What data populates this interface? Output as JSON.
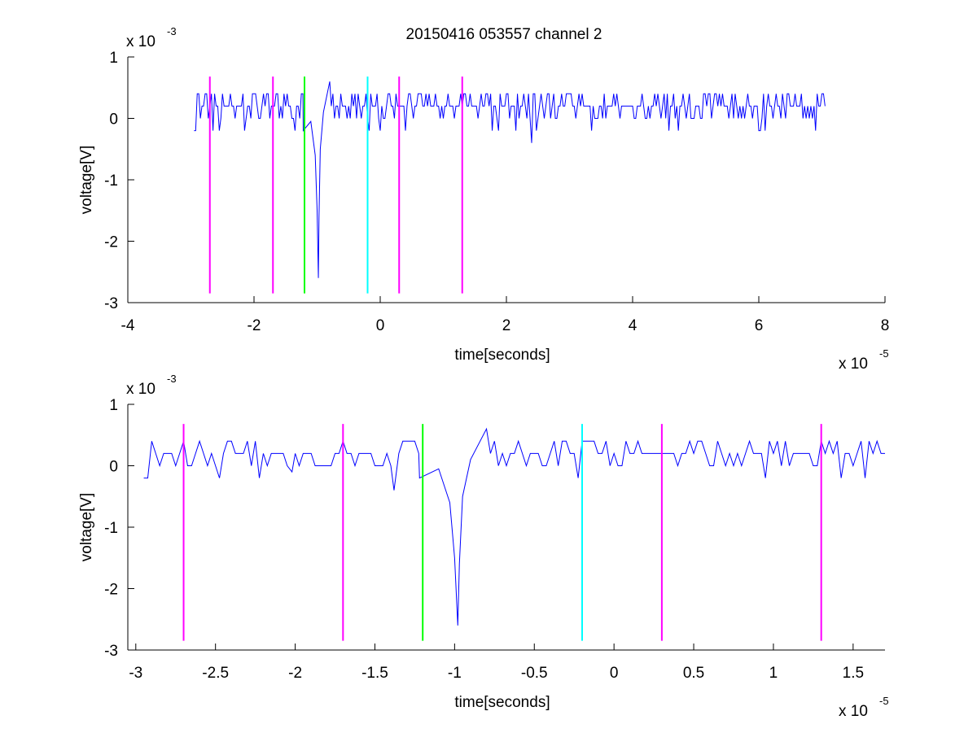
{
  "chart_data": [
    {
      "type": "line",
      "title": "20150416 053557 channel 2",
      "xlabel": "time[seconds]",
      "ylabel": "voltage[V]",
      "x_multiplier": {
        "base": "x 10",
        "exponent": "-5"
      },
      "y_multiplier": {
        "base": "x 10",
        "exponent": "-3"
      },
      "xlim": [
        -4,
        8
      ],
      "ylim": [
        -3,
        1
      ],
      "x_ticks": [
        "-4",
        "-2",
        "0",
        "2",
        "4",
        "6",
        "8"
      ],
      "x_tick_values": [
        -4,
        -2,
        0,
        2,
        4,
        6,
        8
      ],
      "y_ticks": [
        "1",
        "0",
        "-1",
        "-2",
        "-3"
      ],
      "y_tick_values": [
        1,
        0,
        -1,
        -2,
        -3
      ],
      "grid": false,
      "signal": {
        "color": "#0000ff",
        "x_range": [
          -2.95,
          7.05
        ],
        "baseline": 0.2,
        "levels": [
          0.4,
          0.2,
          0.0,
          -0.2
        ],
        "pulse": {
          "x": [
            -1.22,
            -1.1,
            -1.03,
            -1.0,
            -0.98,
            -0.97,
            -0.95,
            -0.9,
            -0.8
          ],
          "y": [
            -0.2,
            -0.05,
            -0.6,
            -1.5,
            -2.6,
            -1.6,
            -0.5,
            0.1,
            0.6
          ]
        },
        "extra_dips": [
          {
            "x": 2.4,
            "y": -0.4
          },
          {
            "x": -1.35,
            "y": -0.2
          }
        ]
      },
      "markers": [
        {
          "x": -2.7,
          "color": "#ff00ff"
        },
        {
          "x": -1.7,
          "color": "#ff00ff"
        },
        {
          "x": -1.2,
          "color": "#00ff00"
        },
        {
          "x": -0.2,
          "color": "#00ffff"
        },
        {
          "x": 0.3,
          "color": "#ff00ff"
        },
        {
          "x": 1.3,
          "color": "#ff00ff"
        }
      ],
      "marker_y_range": [
        -2.85,
        0.68
      ]
    },
    {
      "type": "line",
      "title": "",
      "xlabel": "time[seconds]",
      "ylabel": "voltage[V]",
      "x_multiplier": {
        "base": "x 10",
        "exponent": "-5"
      },
      "y_multiplier": {
        "base": "x 10",
        "exponent": "-3"
      },
      "xlim": [
        -3.05,
        1.7
      ],
      "ylim": [
        -3,
        1
      ],
      "x_ticks": [
        "-3",
        "-2.5",
        "-2",
        "-1.5",
        "-1",
        "-0.5",
        "0",
        "0.5",
        "1",
        "1.5"
      ],
      "x_tick_values": [
        -3,
        -2.5,
        -2,
        -1.5,
        -1,
        -0.5,
        0,
        0.5,
        1,
        1.5
      ],
      "y_ticks": [
        "1",
        "0",
        "-1",
        "-2",
        "-3"
      ],
      "y_tick_values": [
        1,
        0,
        -1,
        -2,
        -3
      ],
      "grid": false,
      "signal": {
        "color": "#0000ff",
        "x_range": [
          -2.95,
          1.7
        ],
        "baseline": 0.2,
        "levels": [
          0.4,
          0.2,
          0.0,
          -0.2
        ],
        "pulse": {
          "x": [
            -1.22,
            -1.1,
            -1.03,
            -1.0,
            -0.98,
            -0.97,
            -0.95,
            -0.9,
            -0.8
          ],
          "y": [
            -0.2,
            -0.05,
            -0.6,
            -1.5,
            -2.6,
            -1.6,
            -0.5,
            0.1,
            0.6
          ]
        },
        "extra_dips": [
          {
            "x": -1.38,
            "y": -0.4
          },
          {
            "x": -2.02,
            "y": -0.1
          }
        ]
      },
      "markers": [
        {
          "x": -2.7,
          "color": "#ff00ff"
        },
        {
          "x": -1.7,
          "color": "#ff00ff"
        },
        {
          "x": -1.2,
          "color": "#00ff00"
        },
        {
          "x": -0.2,
          "color": "#00ffff"
        },
        {
          "x": 0.3,
          "color": "#ff00ff"
        },
        {
          "x": 1.3,
          "color": "#ff00ff"
        }
      ],
      "marker_y_range": [
        -2.85,
        0.68
      ]
    }
  ]
}
